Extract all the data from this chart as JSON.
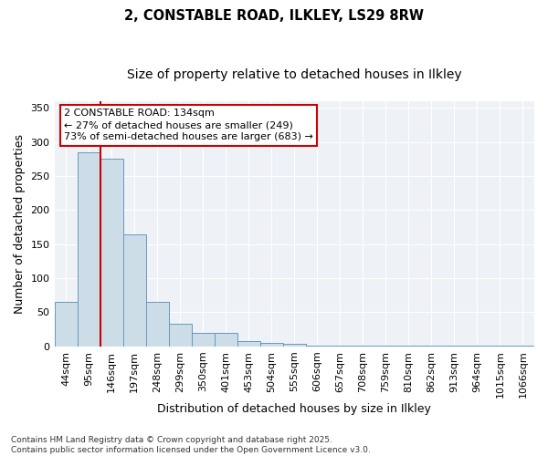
{
  "title1": "2, CONSTABLE ROAD, ILKLEY, LS29 8RW",
  "title2": "Size of property relative to detached houses in Ilkley",
  "xlabel": "Distribution of detached houses by size in Ilkley",
  "ylabel": "Number of detached properties",
  "bar_values": [
    65,
    285,
    275,
    165,
    65,
    33,
    20,
    20,
    8,
    5,
    4,
    1,
    1,
    1,
    1,
    1,
    1,
    1,
    1,
    1,
    1
  ],
  "categories": [
    "44sqm",
    "95sqm",
    "146sqm",
    "197sqm",
    "248sqm",
    "299sqm",
    "350sqm",
    "401sqm",
    "453sqm",
    "504sqm",
    "555sqm",
    "606sqm",
    "657sqm",
    "708sqm",
    "759sqm",
    "810sqm",
    "862sqm",
    "913sqm",
    "964sqm",
    "1015sqm",
    "1066sqm"
  ],
  "bar_color": "#ccdde8",
  "bar_edge_color": "#6699bb",
  "property_line_color": "#cc0000",
  "property_line_x": 1.5,
  "annotation_text": "2 CONSTABLE ROAD: 134sqm\n← 27% of detached houses are smaller (249)\n73% of semi-detached houses are larger (683) →",
  "annotation_box_edgecolor": "#cc0000",
  "ylim": [
    0,
    360
  ],
  "yticks": [
    0,
    50,
    100,
    150,
    200,
    250,
    300,
    350
  ],
  "bg_color": "#eef2f7",
  "footer_text": "Contains HM Land Registry data © Crown copyright and database right 2025.\nContains public sector information licensed under the Open Government Licence v3.0.",
  "title1_fontsize": 10.5,
  "title2_fontsize": 10,
  "axis_label_fontsize": 9,
  "tick_fontsize": 8,
  "footer_fontsize": 6.5
}
